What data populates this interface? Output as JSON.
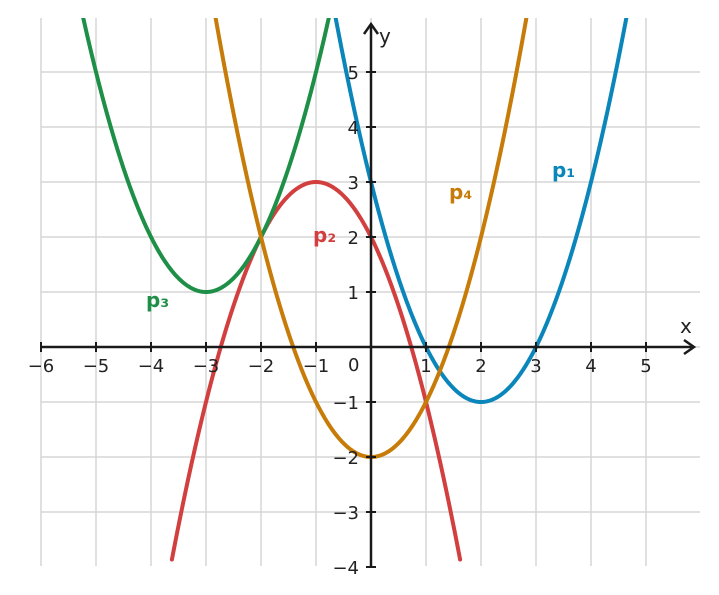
{
  "chart_data": {
    "type": "line",
    "xlabel": "x",
    "ylabel": "y",
    "xlim": [
      -6,
      6
    ],
    "ylim": [
      -4,
      6
    ],
    "grid": true,
    "x_ticks": [
      -6,
      -5,
      -4,
      -3,
      -2,
      -1,
      1,
      2,
      3,
      4,
      5
    ],
    "y_ticks": [
      -4,
      -3,
      -2,
      -1,
      1,
      2,
      3,
      4,
      5
    ],
    "origin_label": "0",
    "series": [
      {
        "name": "p₁",
        "color": "#0a86bb",
        "equation": "y = (x - 2)^2 - 1",
        "vertex": [
          2,
          -1
        ],
        "points": [
          [
            -0.6,
            5.76
          ],
          [
            -0.5,
            5.25
          ],
          [
            0,
            3
          ],
          [
            0.5,
            1.25
          ],
          [
            1,
            0
          ],
          [
            1.5,
            -0.75
          ],
          [
            2,
            -1
          ],
          [
            2.5,
            -0.75
          ],
          [
            3,
            0
          ],
          [
            3.5,
            1.25
          ],
          [
            4,
            3
          ],
          [
            4.5,
            5.25
          ],
          [
            4.6,
            5.76
          ]
        ]
      },
      {
        "name": "p₂",
        "color": "#d23f3f",
        "equation": "y = -(x + 1)^2 + 3",
        "vertex": [
          -1,
          3
        ],
        "points": [
          [
            -3.6,
            -3.76
          ],
          [
            -3,
            -1
          ],
          [
            -2,
            2
          ],
          [
            -1,
            3
          ],
          [
            0,
            2
          ],
          [
            1,
            -1
          ],
          [
            1.6,
            -3.76
          ]
        ]
      },
      {
        "name": "p₃",
        "color": "#1e8f47",
        "equation": "y = (x + 3)^2 + 1",
        "vertex": [
          -3,
          1
        ],
        "points": [
          [
            -5.4,
            6.76
          ],
          [
            -5,
            5
          ],
          [
            -4,
            2
          ],
          [
            -3,
            1
          ],
          [
            -2,
            2
          ],
          [
            -1,
            5
          ],
          [
            -0.6,
            6.76
          ]
        ]
      },
      {
        "name": "p₄",
        "color": "#c77b08",
        "equation": "y = x^2 - 2",
        "vertex": [
          0,
          -2
        ],
        "points": [
          [
            -2.8,
            5.84
          ],
          [
            -2,
            2
          ],
          [
            -1,
            -1
          ],
          [
            0,
            -2
          ],
          [
            1,
            -1
          ],
          [
            2,
            2
          ],
          [
            2.8,
            5.84
          ]
        ]
      }
    ]
  }
}
